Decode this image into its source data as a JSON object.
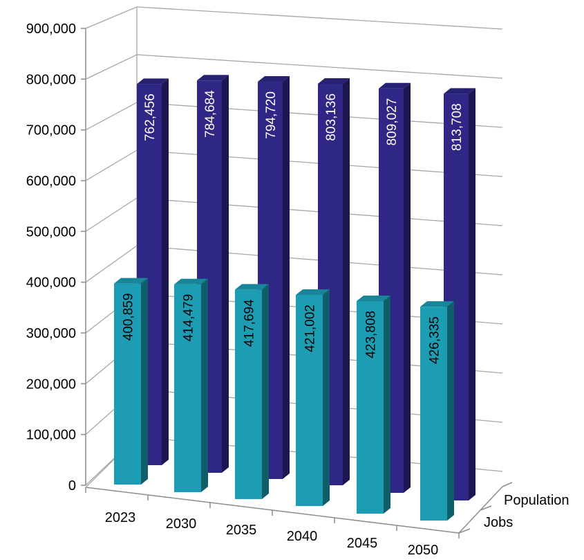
{
  "chart_data": {
    "type": "bar",
    "style": "3d-clustered-columns",
    "categories": [
      "2023",
      "2030",
      "2035",
      "2040",
      "2045",
      "2050"
    ],
    "series": [
      {
        "name": "Population",
        "values": [
          762456,
          784684,
          794720,
          803136,
          809027,
          813708
        ],
        "labels": [
          "762,456",
          "784,684",
          "794,720",
          "803,136",
          "809,027",
          "813,708"
        ],
        "color": "#2E2785",
        "label_color": "#ffffff"
      },
      {
        "name": "Jobs",
        "values": [
          400859,
          414479,
          417694,
          421002,
          423808,
          426335
        ],
        "labels": [
          "400,859",
          "414,479",
          "417,694",
          "421,002",
          "423,808",
          "426,335"
        ],
        "color": "#1C9DB3",
        "label_color": "#000000"
      }
    ],
    "y_ticks": [
      "0",
      "100,000",
      "200,000",
      "300,000",
      "400,000",
      "500,000",
      "600,000",
      "700,000",
      "800,000",
      "900,000"
    ],
    "ylim": [
      0,
      900000
    ],
    "grid": true,
    "legend": "depth-axis",
    "title": "",
    "xlabel": "",
    "ylabel": ""
  }
}
